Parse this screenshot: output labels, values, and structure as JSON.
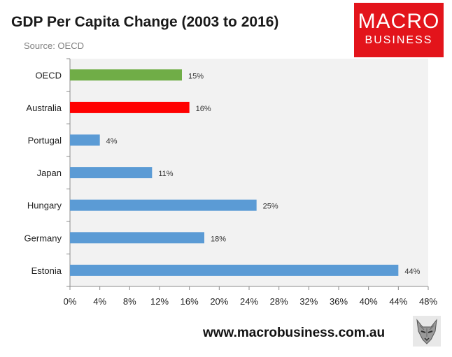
{
  "header": {
    "title": "GDP Per Capita Change (2003 to 2016)",
    "source": "Source: OECD"
  },
  "logo": {
    "line1": "MACRO",
    "line2": "BUSINESS"
  },
  "footer": {
    "url": "www.macrobusiness.com.au"
  },
  "colors": {
    "oecd": "#70ad47",
    "australia": "#ff0000",
    "other": "#5b9bd5",
    "plot_bg": "#f2f2f2"
  },
  "chart_data": {
    "type": "bar",
    "orientation": "horizontal",
    "title": "GDP Per Capita Change (2003 to 2016)",
    "categories": [
      "OECD",
      "Australia",
      "Portugal",
      "Japan",
      "Hungary",
      "Germany",
      "Estonia"
    ],
    "values": [
      15,
      16,
      4,
      11,
      25,
      18,
      44
    ],
    "value_labels": [
      "15%",
      "16%",
      "4%",
      "11%",
      "25%",
      "18%",
      "44%"
    ],
    "bar_colors": [
      "#70ad47",
      "#ff0000",
      "#5b9bd5",
      "#5b9bd5",
      "#5b9bd5",
      "#5b9bd5",
      "#5b9bd5"
    ],
    "xlim": [
      0,
      48
    ],
    "xticks": [
      "0%",
      "4%",
      "8%",
      "12%",
      "16%",
      "20%",
      "24%",
      "28%",
      "32%",
      "36%",
      "40%",
      "44%",
      "48%"
    ],
    "grid": false
  }
}
